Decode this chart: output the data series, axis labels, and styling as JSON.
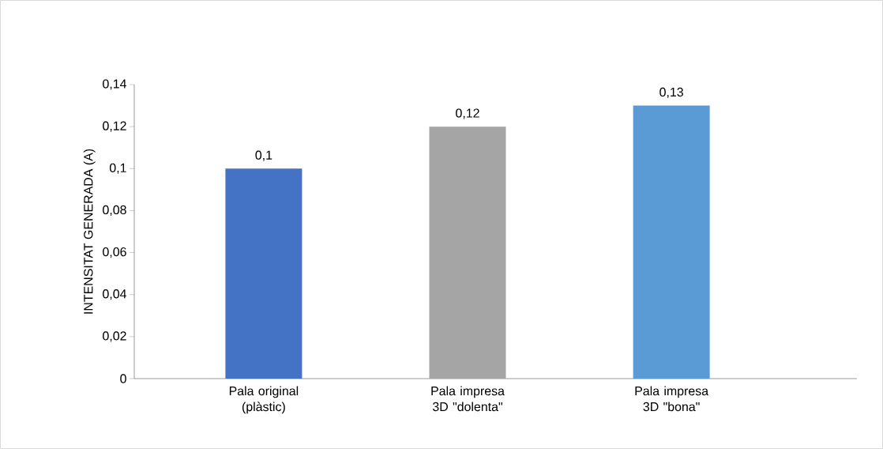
{
  "chart_data": {
    "type": "bar",
    "ylabel": "INTENSITAT GENERADA (A)",
    "categories": [
      "Pala original (plàstic)",
      "Pala impresa 3D \"dolenta\"",
      "Pala impresa 3D \"bona\""
    ],
    "values": [
      0.1,
      0.12,
      0.13
    ],
    "colors": [
      "#4472c4",
      "#a5a5a5",
      "#5b9bd5"
    ],
    "value_labels": [
      "0,1",
      "0,12",
      "0,13"
    ],
    "ylim": [
      0,
      0.14
    ],
    "yticks": [
      {
        "value": 0,
        "label": "0"
      },
      {
        "value": 0.02,
        "label": "0,02"
      },
      {
        "value": 0.04,
        "label": "0,04"
      },
      {
        "value": 0.06,
        "label": "0,06"
      },
      {
        "value": 0.08,
        "label": "0,08"
      },
      {
        "value": 0.1,
        "label": "0,1"
      },
      {
        "value": 0.12,
        "label": "0,12"
      },
      {
        "value": 0.14,
        "label": "0,14"
      }
    ],
    "grid": false
  }
}
